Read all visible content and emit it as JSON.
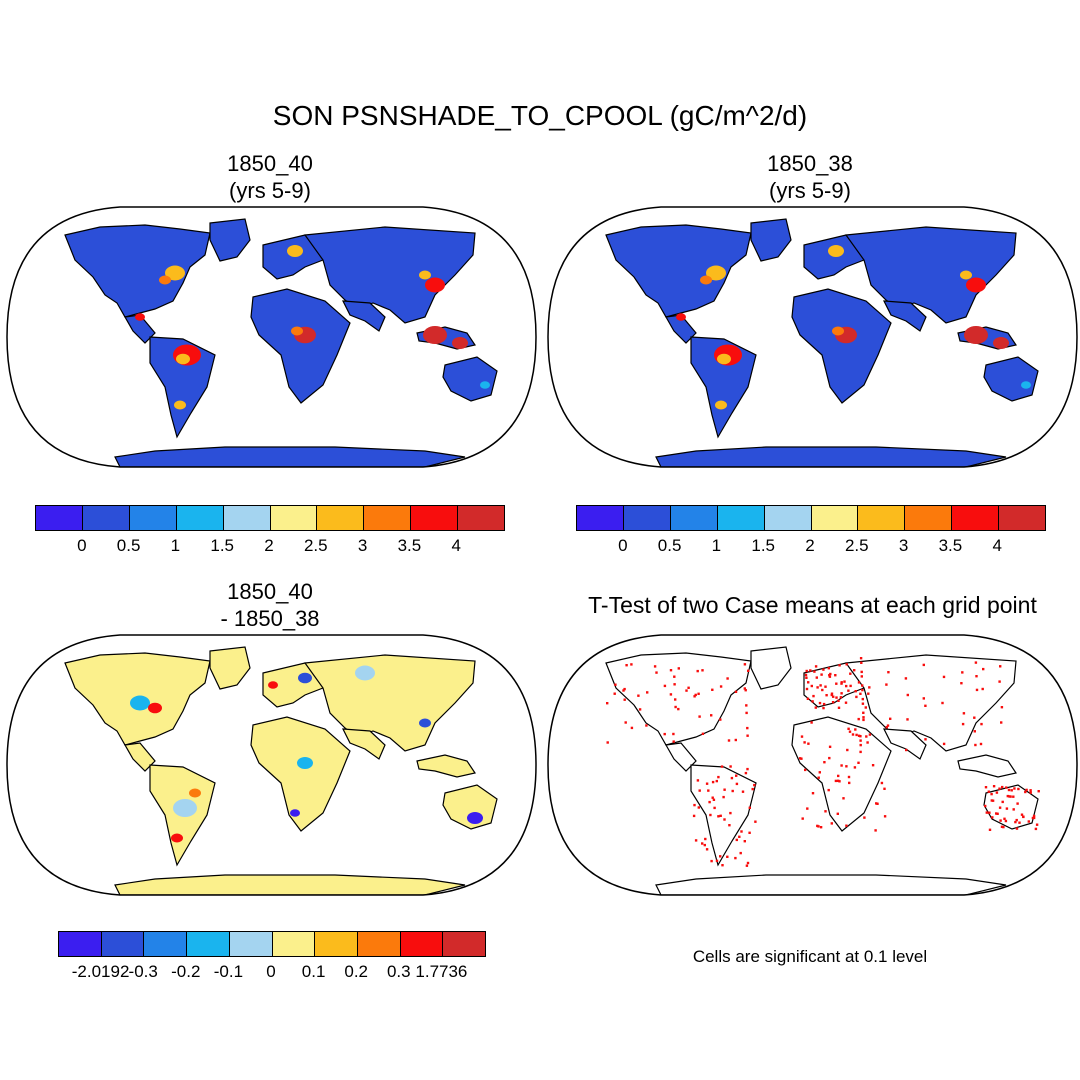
{
  "title": "SON PSNSHADE_TO_CPOOL (gC/m^2/d)",
  "panels": [
    {
      "title": "1850_40\n(yrs 5-9)",
      "kind": "field"
    },
    {
      "title": "1850_38\n(yrs 5-9)",
      "kind": "field"
    },
    {
      "title": "1850_40\n- 1850_38",
      "kind": "difference"
    },
    {
      "title": "T-Test of two Case means at each grid point",
      "kind": "ttest"
    }
  ],
  "colorbars": {
    "field": {
      "colors": [
        "#3b1ef0",
        "#2c4fd8",
        "#2383e8",
        "#1ab4ee",
        "#a4d4f0",
        "#fbf08c",
        "#fbbb1c",
        "#fb7a0c",
        "#f80d0d",
        "#d22a2a"
      ],
      "labels": [
        "0",
        "0.5",
        "1",
        "1.5",
        "2",
        "2.5",
        "3",
        "3.5",
        "4"
      ]
    },
    "difference": {
      "colors": [
        "#3b1ef0",
        "#2c4fd8",
        "#2383e8",
        "#1ab4ee",
        "#a4d4f0",
        "#fbf08c",
        "#fbbb1c",
        "#fb7a0c",
        "#f80d0d",
        "#d22a2a"
      ],
      "labels": [
        "-2.0192",
        "-0.3",
        "-0.2",
        "-0.1",
        "0",
        "0.1",
        "0.2",
        "0.3",
        "1.7736"
      ]
    }
  },
  "ttest_note": "Cells are significant at 0.1 level",
  "map_colors": {
    "ocean": "#ffffff",
    "field_land": "#2c4fd8",
    "diff_land": "#fbf08c",
    "ttest_land": "#ffffff",
    "significant": "#f80d0d"
  }
}
